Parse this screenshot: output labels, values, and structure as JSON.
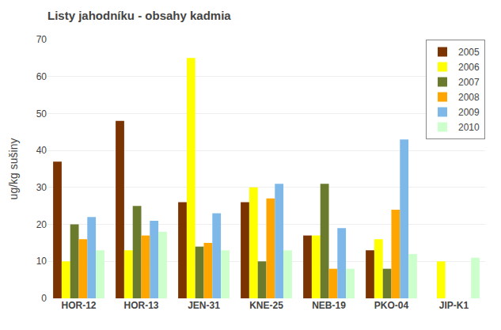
{
  "chart_data": {
    "type": "bar",
    "title": "Listy jahodníku - obsahy kadmia",
    "ylabel": "ug/kg sušiny",
    "categories": [
      "HOR-12",
      "HOR-13",
      "JEN-31",
      "KNE-25",
      "NEB-19",
      "PKO-04",
      "JIP-K1"
    ],
    "series": [
      {
        "name": "2005",
        "color": "#7B3300",
        "values": [
          37,
          48,
          26,
          26,
          17,
          13,
          0
        ]
      },
      {
        "name": "2006",
        "color": "#FFFF00",
        "values": [
          10,
          13,
          65,
          30,
          17,
          16,
          10
        ]
      },
      {
        "name": "2007",
        "color": "#6B7B2E",
        "values": [
          20,
          25,
          14,
          10,
          31,
          8,
          0
        ]
      },
      {
        "name": "2008",
        "color": "#FFA500",
        "values": [
          16,
          17,
          15,
          27,
          8,
          24,
          0
        ]
      },
      {
        "name": "2009",
        "color": "#7DB8E8",
        "values": [
          22,
          21,
          23,
          31,
          19,
          43,
          0
        ]
      },
      {
        "name": "2010",
        "color": "#CCFFCC",
        "values": [
          13,
          18,
          13,
          13,
          8,
          12,
          11
        ]
      }
    ],
    "ylim": [
      0,
      70
    ],
    "yticks": [
      0,
      10,
      20,
      30,
      40,
      50,
      60,
      70
    ],
    "grid": true,
    "legend": "upper right"
  }
}
